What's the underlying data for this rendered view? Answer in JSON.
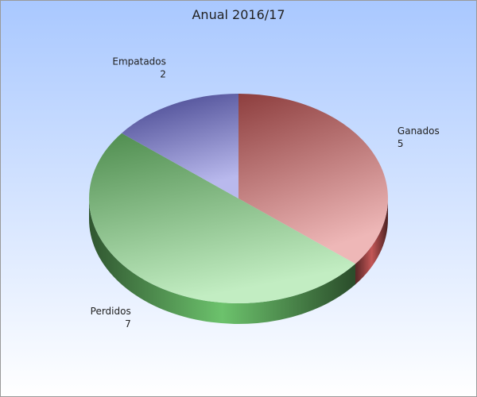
{
  "chart_data": {
    "type": "pie",
    "title": "Anual 2016/17",
    "categories": [
      "Ganados",
      "Perdidos",
      "Empatados"
    ],
    "values": [
      5,
      7,
      2
    ],
    "colors": [
      "#d95f5f",
      "#78d878",
      "#6464d8"
    ]
  }
}
